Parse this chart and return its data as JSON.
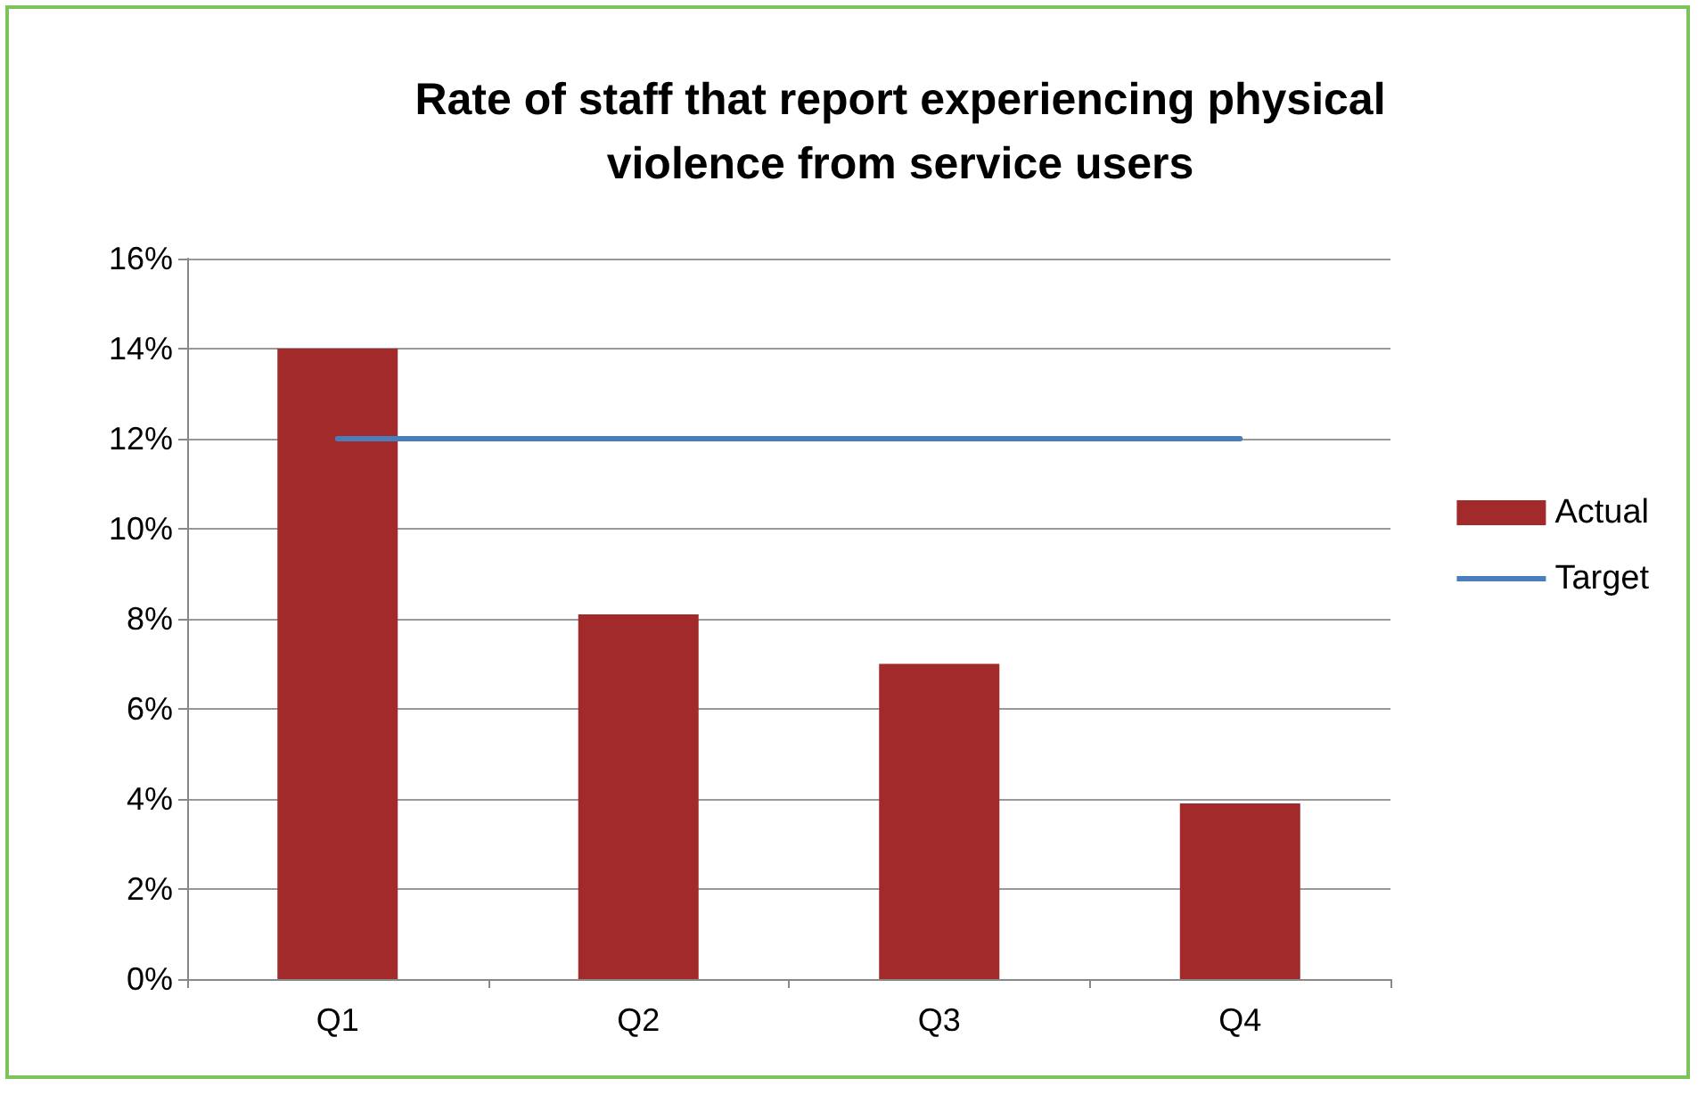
{
  "chart_data": {
    "type": "bar",
    "title": "Rate of staff that report experiencing physical\nviolence from service users",
    "categories": [
      "Q1",
      "Q2",
      "Q3",
      "Q4"
    ],
    "series": [
      {
        "name": "Actual",
        "color": "#a32a2a",
        "values": [
          14.0,
          8.1,
          7.0,
          3.9
        ]
      },
      {
        "name": "Target",
        "type": "line",
        "color": "#4a7ebb",
        "values": [
          12,
          12,
          12,
          12
        ]
      }
    ],
    "ylim": [
      0,
      16
    ],
    "yticks": [
      {
        "value": 0,
        "label": "0%"
      },
      {
        "value": 2,
        "label": "2%"
      },
      {
        "value": 4,
        "label": "4%"
      },
      {
        "value": 6,
        "label": "6%"
      },
      {
        "value": 8,
        "label": "8%"
      },
      {
        "value": 10,
        "label": "10%"
      },
      {
        "value": 12,
        "label": "12%"
      },
      {
        "value": 14,
        "label": "14%"
      },
      {
        "value": 16,
        "label": "16%"
      }
    ],
    "grid": "y",
    "legend": "right",
    "marker": "none"
  }
}
